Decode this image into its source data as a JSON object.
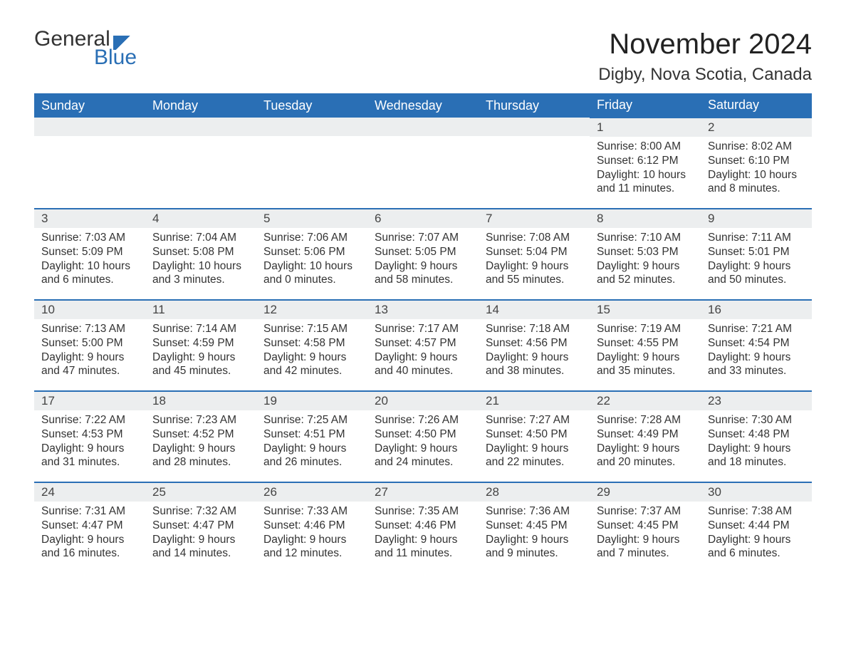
{
  "logo": {
    "text1": "General",
    "text2": "Blue"
  },
  "title": "November 2024",
  "location": "Digby, Nova Scotia, Canada",
  "colors": {
    "brand_blue": "#2a6fb5",
    "header_bg": "#2a6fb5",
    "header_text": "#ffffff",
    "daynum_bg": "#eceeef",
    "text": "#333333",
    "page_bg": "#ffffff"
  },
  "typography": {
    "month_title_size": 40,
    "location_size": 24,
    "header_cell_size": 18,
    "daynum_size": 17,
    "body_size": 15.5,
    "font_family": "Segoe UI"
  },
  "layout": {
    "columns": 7,
    "rows": 5,
    "first_day_index": 5
  },
  "weekdays": [
    "Sunday",
    "Monday",
    "Tuesday",
    "Wednesday",
    "Thursday",
    "Friday",
    "Saturday"
  ],
  "days": [
    {
      "n": 1,
      "sunrise": "8:00 AM",
      "sunset": "6:12 PM",
      "daylight": "10 hours and 11 minutes."
    },
    {
      "n": 2,
      "sunrise": "8:02 AM",
      "sunset": "6:10 PM",
      "daylight": "10 hours and 8 minutes."
    },
    {
      "n": 3,
      "sunrise": "7:03 AM",
      "sunset": "5:09 PM",
      "daylight": "10 hours and 6 minutes."
    },
    {
      "n": 4,
      "sunrise": "7:04 AM",
      "sunset": "5:08 PM",
      "daylight": "10 hours and 3 minutes."
    },
    {
      "n": 5,
      "sunrise": "7:06 AM",
      "sunset": "5:06 PM",
      "daylight": "10 hours and 0 minutes."
    },
    {
      "n": 6,
      "sunrise": "7:07 AM",
      "sunset": "5:05 PM",
      "daylight": "9 hours and 58 minutes."
    },
    {
      "n": 7,
      "sunrise": "7:08 AM",
      "sunset": "5:04 PM",
      "daylight": "9 hours and 55 minutes."
    },
    {
      "n": 8,
      "sunrise": "7:10 AM",
      "sunset": "5:03 PM",
      "daylight": "9 hours and 52 minutes."
    },
    {
      "n": 9,
      "sunrise": "7:11 AM",
      "sunset": "5:01 PM",
      "daylight": "9 hours and 50 minutes."
    },
    {
      "n": 10,
      "sunrise": "7:13 AM",
      "sunset": "5:00 PM",
      "daylight": "9 hours and 47 minutes."
    },
    {
      "n": 11,
      "sunrise": "7:14 AM",
      "sunset": "4:59 PM",
      "daylight": "9 hours and 45 minutes."
    },
    {
      "n": 12,
      "sunrise": "7:15 AM",
      "sunset": "4:58 PM",
      "daylight": "9 hours and 42 minutes."
    },
    {
      "n": 13,
      "sunrise": "7:17 AM",
      "sunset": "4:57 PM",
      "daylight": "9 hours and 40 minutes."
    },
    {
      "n": 14,
      "sunrise": "7:18 AM",
      "sunset": "4:56 PM",
      "daylight": "9 hours and 38 minutes."
    },
    {
      "n": 15,
      "sunrise": "7:19 AM",
      "sunset": "4:55 PM",
      "daylight": "9 hours and 35 minutes."
    },
    {
      "n": 16,
      "sunrise": "7:21 AM",
      "sunset": "4:54 PM",
      "daylight": "9 hours and 33 minutes."
    },
    {
      "n": 17,
      "sunrise": "7:22 AM",
      "sunset": "4:53 PM",
      "daylight": "9 hours and 31 minutes."
    },
    {
      "n": 18,
      "sunrise": "7:23 AM",
      "sunset": "4:52 PM",
      "daylight": "9 hours and 28 minutes."
    },
    {
      "n": 19,
      "sunrise": "7:25 AM",
      "sunset": "4:51 PM",
      "daylight": "9 hours and 26 minutes."
    },
    {
      "n": 20,
      "sunrise": "7:26 AM",
      "sunset": "4:50 PM",
      "daylight": "9 hours and 24 minutes."
    },
    {
      "n": 21,
      "sunrise": "7:27 AM",
      "sunset": "4:50 PM",
      "daylight": "9 hours and 22 minutes."
    },
    {
      "n": 22,
      "sunrise": "7:28 AM",
      "sunset": "4:49 PM",
      "daylight": "9 hours and 20 minutes."
    },
    {
      "n": 23,
      "sunrise": "7:30 AM",
      "sunset": "4:48 PM",
      "daylight": "9 hours and 18 minutes."
    },
    {
      "n": 24,
      "sunrise": "7:31 AM",
      "sunset": "4:47 PM",
      "daylight": "9 hours and 16 minutes."
    },
    {
      "n": 25,
      "sunrise": "7:32 AM",
      "sunset": "4:47 PM",
      "daylight": "9 hours and 14 minutes."
    },
    {
      "n": 26,
      "sunrise": "7:33 AM",
      "sunset": "4:46 PM",
      "daylight": "9 hours and 12 minutes."
    },
    {
      "n": 27,
      "sunrise": "7:35 AM",
      "sunset": "4:46 PM",
      "daylight": "9 hours and 11 minutes."
    },
    {
      "n": 28,
      "sunrise": "7:36 AM",
      "sunset": "4:45 PM",
      "daylight": "9 hours and 9 minutes."
    },
    {
      "n": 29,
      "sunrise": "7:37 AM",
      "sunset": "4:45 PM",
      "daylight": "9 hours and 7 minutes."
    },
    {
      "n": 30,
      "sunrise": "7:38 AM",
      "sunset": "4:44 PM",
      "daylight": "9 hours and 6 minutes."
    }
  ],
  "labels": {
    "sunrise": "Sunrise:",
    "sunset": "Sunset:",
    "daylight": "Daylight:"
  }
}
